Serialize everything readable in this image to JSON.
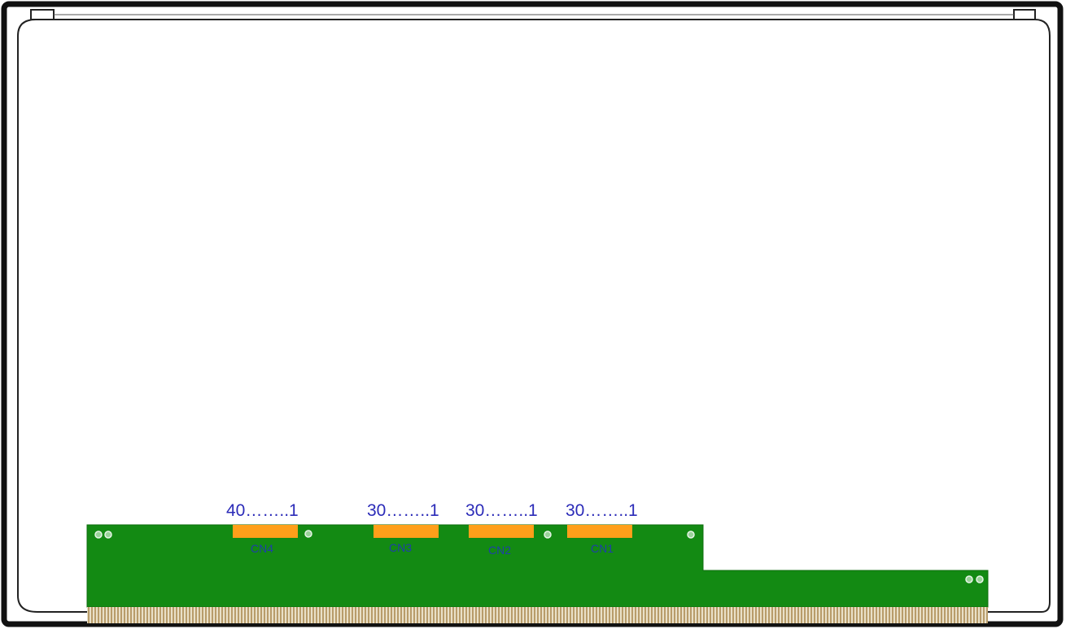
{
  "colors": {
    "frame": "#111111",
    "panel": "#ffffff",
    "pcb": "#138a13",
    "connector": "#ff9f1a",
    "label_blue": "#2b2bb8",
    "cn_label_blue": "#1f3fa8",
    "gold_fingers": "#c8b48c"
  },
  "connectors": [
    {
      "id": "CN4",
      "label": "CN4",
      "pin_range": "40……..1"
    },
    {
      "id": "CN3",
      "label": "CN3",
      "pin_range": "30……..1"
    },
    {
      "id": "CN2",
      "label": "CN2",
      "pin_range": "30……..1"
    },
    {
      "id": "CN1",
      "label": "CN1",
      "pin_range": "30……..1"
    }
  ],
  "icons": {
    "mounting_hole": "circle-outline",
    "gold_finger_strip": "edge-connector-pins"
  }
}
